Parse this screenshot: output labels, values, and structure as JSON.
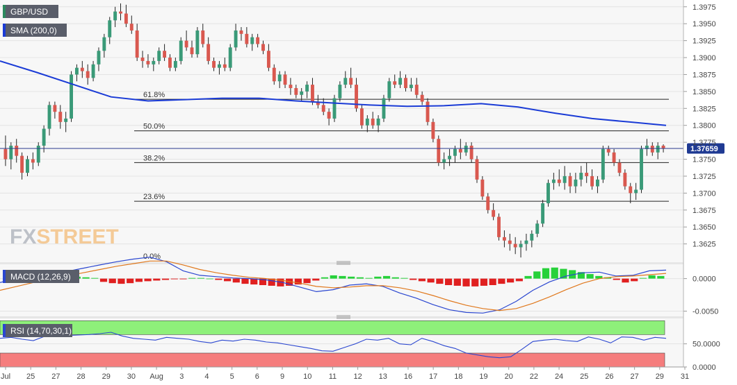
{
  "chart_data": [
    {
      "type": "candlestick",
      "symbol": "GBP/USD",
      "indicator_label": "SMA (200,0)",
      "last_price_label": "1.37659",
      "last_price": 1.37659,
      "ylim": [
        1.3598,
        1.3985
      ],
      "y_ticks": [
        "1.3975",
        "1.3950",
        "1.3925",
        "1.3900",
        "1.3875",
        "1.3850",
        "1.3825",
        "1.3800",
        "1.3775",
        "1.3750",
        "1.3725",
        "1.3700",
        "1.3675",
        "1.3650",
        "1.3625"
      ],
      "x_tick_labels": [
        "Jul",
        "25",
        "27",
        "28",
        "29",
        "30",
        "Aug",
        "3",
        "4",
        "5",
        "6",
        "9",
        "10",
        "11",
        "12",
        "13",
        "16",
        "17",
        "18",
        "19",
        "20",
        "22",
        "24",
        "25",
        "26",
        "27",
        "29",
        "31"
      ],
      "watermark": {
        "prefix": "FX",
        "suffix": "STREET"
      },
      "fibonacci": [
        {
          "label": "61.8%",
          "value": 1.38385
        },
        {
          "label": "50.0%",
          "value": 1.37919
        },
        {
          "label": "38.2%",
          "value": 1.3745
        },
        {
          "label": "23.6%",
          "value": 1.3688
        },
        {
          "label": "0.0%",
          "value": 1.36
        }
      ],
      "sma200": [
        1.3895,
        1.3878,
        1.386,
        1.3842,
        1.3836,
        1.3838,
        1.384,
        1.384,
        1.3836,
        1.3833,
        1.383,
        1.3828,
        1.3829,
        1.3832,
        1.3827,
        1.3818,
        1.381,
        1.3805,
        1.38
      ],
      "candles": [
        [
          1.3765,
          1.3785,
          1.374,
          1.375
        ],
        [
          1.375,
          1.3775,
          1.3735,
          1.377
        ],
        [
          1.377,
          1.378,
          1.3745,
          1.3755
        ],
        [
          1.3755,
          1.376,
          1.372,
          1.373
        ],
        [
          1.373,
          1.3755,
          1.3725,
          1.375
        ],
        [
          1.375,
          1.376,
          1.3735,
          1.3745
        ],
        [
          1.3745,
          1.3775,
          1.374,
          1.377
        ],
        [
          1.377,
          1.38,
          1.376,
          1.3795
        ],
        [
          1.3795,
          1.3835,
          1.3785,
          1.383
        ],
        [
          1.383,
          1.3835,
          1.381,
          1.382
        ],
        [
          1.382,
          1.383,
          1.3795,
          1.3805
        ],
        [
          1.3805,
          1.382,
          1.379,
          1.381
        ],
        [
          1.381,
          1.388,
          1.3805,
          1.3875
        ],
        [
          1.3875,
          1.389,
          1.3865,
          1.3885
        ],
        [
          1.3885,
          1.3895,
          1.387,
          1.388
        ],
        [
          1.388,
          1.389,
          1.386,
          1.387
        ],
        [
          1.387,
          1.3895,
          1.3865,
          1.389
        ],
        [
          1.389,
          1.3915,
          1.388,
          1.391
        ],
        [
          1.391,
          1.3935,
          1.39,
          1.393
        ],
        [
          1.393,
          1.396,
          1.392,
          1.3955
        ],
        [
          1.3955,
          1.3975,
          1.3945,
          1.3968
        ],
        [
          1.3968,
          1.398,
          1.3955,
          1.3965
        ],
        [
          1.3965,
          1.3978,
          1.3945,
          1.395
        ],
        [
          1.395,
          1.3962,
          1.3935,
          1.394
        ],
        [
          1.394,
          1.395,
          1.3895,
          1.39
        ],
        [
          1.39,
          1.391,
          1.3885,
          1.3895
        ],
        [
          1.3895,
          1.3905,
          1.3885,
          1.389
        ],
        [
          1.389,
          1.39,
          1.388,
          1.3895
        ],
        [
          1.3895,
          1.3915,
          1.389,
          1.391
        ],
        [
          1.391,
          1.392,
          1.3895,
          1.39
        ],
        [
          1.39,
          1.3905,
          1.388,
          1.3885
        ],
        [
          1.3885,
          1.39,
          1.388,
          1.3895
        ],
        [
          1.3895,
          1.393,
          1.389,
          1.3925
        ],
        [
          1.3925,
          1.394,
          1.391,
          1.3915
        ],
        [
          1.3915,
          1.3925,
          1.39,
          1.3905
        ],
        [
          1.3905,
          1.3945,
          1.39,
          1.394
        ],
        [
          1.394,
          1.395,
          1.3915,
          1.392
        ],
        [
          1.392,
          1.393,
          1.389,
          1.3895
        ],
        [
          1.3895,
          1.39,
          1.388,
          1.3885
        ],
        [
          1.3885,
          1.3895,
          1.3875,
          1.389
        ],
        [
          1.389,
          1.39,
          1.388,
          1.3885
        ],
        [
          1.3885,
          1.392,
          1.388,
          1.3915
        ],
        [
          1.3915,
          1.395,
          1.391,
          1.394
        ],
        [
          1.394,
          1.3945,
          1.3925,
          1.3935
        ],
        [
          1.3935,
          1.3945,
          1.3915,
          1.392
        ],
        [
          1.392,
          1.3935,
          1.391,
          1.393
        ],
        [
          1.393,
          1.3935,
          1.3915,
          1.392
        ],
        [
          1.392,
          1.3925,
          1.3905,
          1.391
        ],
        [
          1.391,
          1.392,
          1.388,
          1.3885
        ],
        [
          1.3885,
          1.389,
          1.386,
          1.3865
        ],
        [
          1.3865,
          1.388,
          1.3855,
          1.3875
        ],
        [
          1.3875,
          1.388,
          1.3855,
          1.386
        ],
        [
          1.386,
          1.387,
          1.3845,
          1.3855
        ],
        [
          1.3855,
          1.386,
          1.384,
          1.3845
        ],
        [
          1.3845,
          1.3855,
          1.3835,
          1.385
        ],
        [
          1.385,
          1.3865,
          1.384,
          1.386
        ],
        [
          1.386,
          1.387,
          1.383,
          1.3835
        ],
        [
          1.3835,
          1.3845,
          1.3825,
          1.383
        ],
        [
          1.383,
          1.384,
          1.3815,
          1.382
        ],
        [
          1.382,
          1.3825,
          1.38,
          1.381
        ],
        [
          1.381,
          1.3845,
          1.3805,
          1.384
        ],
        [
          1.384,
          1.3865,
          1.3835,
          1.386
        ],
        [
          1.386,
          1.388,
          1.3855,
          1.387
        ],
        [
          1.387,
          1.3885,
          1.3855,
          1.386
        ],
        [
          1.386,
          1.387,
          1.382,
          1.3825
        ],
        [
          1.3825,
          1.383,
          1.3795,
          1.38
        ],
        [
          1.38,
          1.3815,
          1.379,
          1.381
        ],
        [
          1.381,
          1.382,
          1.3795,
          1.38
        ],
        [
          1.38,
          1.3815,
          1.379,
          1.381
        ],
        [
          1.381,
          1.3845,
          1.3805,
          1.384
        ],
        [
          1.384,
          1.387,
          1.3835,
          1.3865
        ],
        [
          1.3865,
          1.3875,
          1.3855,
          1.386
        ],
        [
          1.386,
          1.388,
          1.3855,
          1.387
        ],
        [
          1.387,
          1.3875,
          1.385,
          1.3855
        ],
        [
          1.3855,
          1.387,
          1.385,
          1.386
        ],
        [
          1.386,
          1.387,
          1.384,
          1.3845
        ],
        [
          1.3845,
          1.385,
          1.383,
          1.3835
        ],
        [
          1.3835,
          1.384,
          1.38,
          1.3805
        ],
        [
          1.3805,
          1.381,
          1.3775,
          1.378
        ],
        [
          1.378,
          1.3785,
          1.374,
          1.3745
        ],
        [
          1.3745,
          1.376,
          1.3735,
          1.375
        ],
        [
          1.375,
          1.3765,
          1.374,
          1.3755
        ],
        [
          1.3755,
          1.377,
          1.3745,
          1.3765
        ],
        [
          1.3765,
          1.378,
          1.375,
          1.376
        ],
        [
          1.376,
          1.3775,
          1.3755,
          1.377
        ],
        [
          1.377,
          1.3775,
          1.3745,
          1.375
        ],
        [
          1.375,
          1.3755,
          1.3715,
          1.372
        ],
        [
          1.372,
          1.3725,
          1.369,
          1.3695
        ],
        [
          1.3695,
          1.37,
          1.367,
          1.3675
        ],
        [
          1.3675,
          1.3685,
          1.366,
          1.3665
        ],
        [
          1.3665,
          1.367,
          1.363,
          1.3635
        ],
        [
          1.3635,
          1.3645,
          1.362,
          1.363
        ],
        [
          1.363,
          1.364,
          1.3615,
          1.3625
        ],
        [
          1.3625,
          1.3635,
          1.361,
          1.362
        ],
        [
          1.362,
          1.363,
          1.3605,
          1.3625
        ],
        [
          1.3625,
          1.364,
          1.3615,
          1.363
        ],
        [
          1.363,
          1.3645,
          1.362,
          1.364
        ],
        [
          1.364,
          1.366,
          1.3635,
          1.3655
        ],
        [
          1.3655,
          1.369,
          1.365,
          1.3685
        ],
        [
          1.3685,
          1.372,
          1.368,
          1.3715
        ],
        [
          1.3715,
          1.373,
          1.3705,
          1.372
        ],
        [
          1.372,
          1.3735,
          1.371,
          1.3715
        ],
        [
          1.3715,
          1.374,
          1.3705,
          1.3725
        ],
        [
          1.3725,
          1.373,
          1.37,
          1.371
        ],
        [
          1.371,
          1.373,
          1.37,
          1.372
        ],
        [
          1.372,
          1.374,
          1.371,
          1.373
        ],
        [
          1.373,
          1.3745,
          1.3715,
          1.3725
        ],
        [
          1.3725,
          1.3735,
          1.3705,
          1.371
        ],
        [
          1.371,
          1.3725,
          1.37,
          1.372
        ],
        [
          1.372,
          1.377,
          1.3715,
          1.3765
        ],
        [
          1.3765,
          1.377,
          1.3755,
          1.376
        ],
        [
          1.376,
          1.3765,
          1.374,
          1.3745
        ],
        [
          1.3745,
          1.375,
          1.3725,
          1.373
        ],
        [
          1.373,
          1.3735,
          1.3705,
          1.371
        ],
        [
          1.371,
          1.3715,
          1.3685,
          1.37
        ],
        [
          1.37,
          1.3715,
          1.369,
          1.3705
        ],
        [
          1.3705,
          1.377,
          1.37,
          1.3765
        ],
        [
          1.3765,
          1.378,
          1.3755,
          1.377
        ],
        [
          1.377,
          1.3775,
          1.3755,
          1.376
        ],
        [
          1.376,
          1.3775,
          1.375,
          1.377
        ],
        [
          1.377,
          1.3772,
          1.376,
          1.3766
        ]
      ]
    },
    {
      "type": "histogram",
      "indicator_label": "MACD (12,26,9)",
      "ylim": [
        -0.0058,
        0.0022
      ],
      "y_ticks": [
        "0.0000",
        "-0.0050"
      ],
      "histogram": [
        0.0009,
        0.001,
        0.0009,
        0.0008,
        0.0007,
        0.0006,
        0.0006,
        0.0004,
        0.0003,
        0.0002,
        0.0001,
        -0.0005,
        -0.0007,
        -0.0008,
        -0.0007,
        -0.0005,
        -0.0004,
        -0.0003,
        -0.0002,
        -0.0001,
        -0.0001,
        0.0001,
        0.0001,
        0.0,
        -0.0002,
        -0.0004,
        -0.0006,
        -0.0008,
        -0.0009,
        -0.001,
        -0.0011,
        -0.0012,
        -0.0011,
        -0.0009,
        -0.0007,
        -0.0003,
        0.0002,
        0.0005,
        0.0004,
        0.0003,
        0.0002,
        0.0001,
        0.0003,
        0.0004,
        0.0002,
        0.0001,
        -0.0002,
        -0.0004,
        -0.0006,
        -0.0008,
        -0.001,
        -0.0011,
        -0.0012,
        -0.0012,
        -0.0011,
        -0.001,
        -0.0008,
        -0.0006,
        -0.0004,
        0.0004,
        0.0011,
        0.0016,
        0.0017,
        0.0015,
        0.0013,
        0.001,
        0.0007,
        0.0004,
        0.0002,
        -0.0002,
        -0.0006,
        -0.0004,
        0.0001,
        0.0005,
        0.0004
      ],
      "macd": [
        -0.0006,
        0.0,
        0.0004,
        0.0008,
        0.0011,
        0.0016,
        0.0021,
        0.0026,
        0.003,
        0.0033,
        0.0026,
        0.0012,
        0.0005,
        0.0003,
        0.0001,
        0.0,
        -0.0002,
        -0.0006,
        -0.0013,
        -0.002,
        -0.0017,
        -0.001,
        -0.0008,
        -0.0012,
        -0.0022,
        -0.003,
        -0.004,
        -0.0048,
        -0.0052,
        -0.0053,
        -0.0048,
        -0.0035,
        -0.0018,
        -0.0005,
        0.0004,
        0.0009,
        0.001,
        0.0004,
        0.0005,
        0.0012,
        0.0013
      ],
      "signal": [
        -0.0018,
        -0.0012,
        -0.0006,
        -0.0001,
        0.0004,
        0.0009,
        0.0014,
        0.0019,
        0.0023,
        0.0027,
        0.0027,
        0.0021,
        0.0014,
        0.0009,
        0.0005,
        0.0002,
        0.0,
        -0.0003,
        -0.0007,
        -0.0012,
        -0.0014,
        -0.0013,
        -0.0011,
        -0.0011,
        -0.0014,
        -0.0019,
        -0.0026,
        -0.0034,
        -0.0041,
        -0.0046,
        -0.0049,
        -0.0046,
        -0.0038,
        -0.0028,
        -0.0017,
        -0.0007,
        0.0,
        0.0003,
        0.0004,
        0.0006,
        0.0008
      ]
    },
    {
      "type": "line",
      "indicator_label": "RSI (14,70,30,1)",
      "ylim": [
        0,
        105
      ],
      "y_ticks": [
        "50.0000",
        "0.0000"
      ],
      "overbought": 70,
      "oversold": 30,
      "values": [
        62,
        64,
        60,
        57,
        66,
        73,
        68,
        69,
        70,
        72,
        75,
        67,
        62,
        60,
        58,
        64,
        62,
        60,
        55,
        52,
        58,
        56,
        60,
        58,
        54,
        52,
        48,
        44,
        40,
        35,
        34,
        42,
        50,
        60,
        58,
        62,
        50,
        48,
        62,
        55,
        46,
        40,
        30,
        26,
        22,
        20,
        22,
        38,
        55,
        58,
        60,
        57,
        55,
        65,
        60,
        52,
        65,
        64,
        58,
        64,
        62
      ]
    }
  ]
}
